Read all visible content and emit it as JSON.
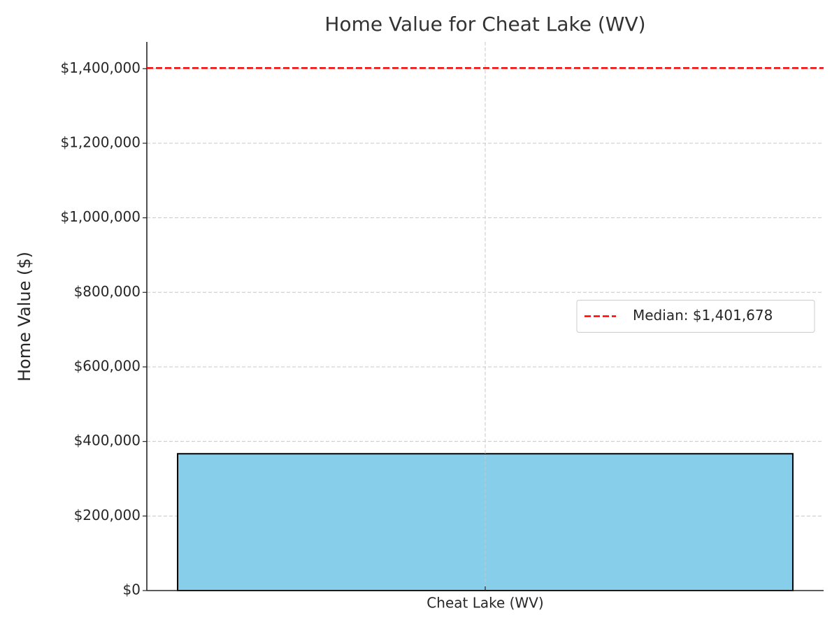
{
  "chart_data": {
    "type": "bar",
    "title": "Home Value for Cheat Lake (WV)",
    "y_label": "Home Value ($)",
    "categories": [
      "Cheat Lake (WV)"
    ],
    "values": [
      367000
    ],
    "color": "#87ceeb",
    "edge_color": "#000000",
    "ylim": [
      0,
      1471762
    ],
    "yticks": [
      {
        "value": 0,
        "label": "$0"
      },
      {
        "value": 200000,
        "label": "$200,000"
      },
      {
        "value": 400000,
        "label": "$400,000"
      },
      {
        "value": 600000,
        "label": "$600,000"
      },
      {
        "value": 800000,
        "label": "$800,000"
      },
      {
        "value": 1000000,
        "label": "$1,000,000"
      },
      {
        "value": 1200000,
        "label": "$1,200,000"
      },
      {
        "value": 1400000,
        "label": "$1,400,000"
      }
    ],
    "grid": true,
    "reference_line": {
      "name": "Median: $1,401,678",
      "value": 1401678,
      "color": "#ff0000"
    },
    "legend": "center right"
  }
}
